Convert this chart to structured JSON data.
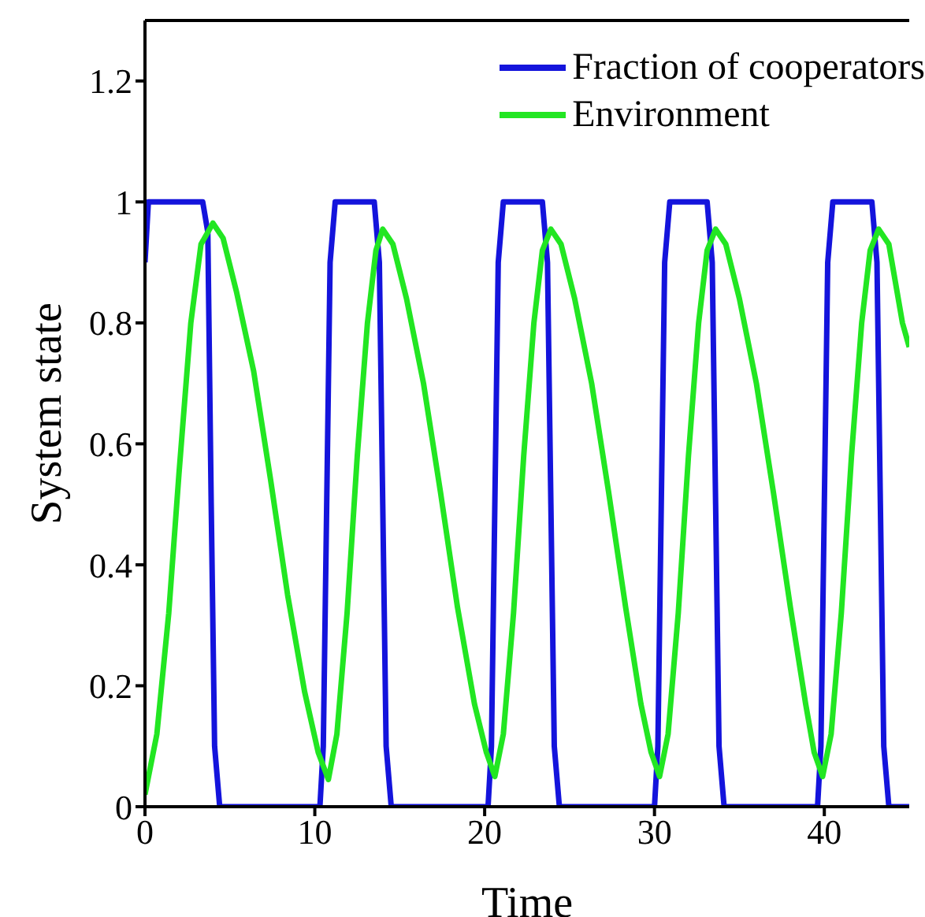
{
  "chart_data": {
    "type": "line",
    "xlabel": "Time",
    "ylabel": "System state",
    "xlim": [
      0,
      45
    ],
    "ylim": [
      0,
      1.3
    ],
    "xticks": [
      0,
      10,
      20,
      30,
      40
    ],
    "yticks": [
      0,
      0.2,
      0.4,
      0.6,
      0.8,
      1,
      1.2
    ],
    "grid": false,
    "legend": "top right",
    "marker": "none",
    "line_style": "solid",
    "series": [
      {
        "name": "Fraction of cooperators",
        "color": "#1414dc",
        "x": [
          0,
          0.2,
          3.4,
          3.7,
          3.9,
          4.1,
          4.4,
          10.3,
          10.5,
          10.7,
          10.9,
          11.2,
          13.5,
          13.8,
          14.0,
          14.2,
          14.5,
          20.2,
          20.4,
          20.6,
          20.8,
          21.1,
          23.4,
          23.7,
          23.9,
          24.1,
          24.4,
          30.0,
          30.2,
          30.4,
          30.6,
          30.9,
          33.1,
          33.4,
          33.6,
          33.8,
          34.1,
          39.6,
          39.8,
          40.0,
          40.2,
          40.5,
          42.8,
          43.1,
          43.3,
          43.5,
          43.8,
          45
        ],
        "values": [
          0.9,
          1,
          1,
          0.95,
          0.5,
          0.1,
          0,
          0,
          0.1,
          0.5,
          0.9,
          1,
          1,
          0.9,
          0.5,
          0.1,
          0,
          0,
          0.1,
          0.5,
          0.9,
          1,
          1,
          0.9,
          0.5,
          0.1,
          0,
          0,
          0.1,
          0.5,
          0.9,
          1,
          1,
          0.9,
          0.5,
          0.1,
          0,
          0,
          0.1,
          0.5,
          0.9,
          1,
          1,
          0.9,
          0.5,
          0.1,
          0,
          0
        ]
      },
      {
        "name": "Environment",
        "color": "#22e622",
        "x": [
          0,
          0.7,
          1.4,
          2.0,
          2.7,
          3.3,
          4.0,
          4.6,
          5.4,
          6.4,
          7.4,
          8.4,
          9.4,
          10.2,
          10.8,
          11.3,
          11.9,
          12.5,
          13.1,
          13.6,
          14.0,
          14.6,
          15.4,
          16.4,
          17.4,
          18.4,
          19.4,
          20.1,
          20.6,
          21.1,
          21.7,
          22.3,
          22.9,
          23.4,
          23.9,
          24.5,
          25.3,
          26.3,
          27.3,
          28.3,
          29.2,
          29.8,
          30.3,
          30.8,
          31.4,
          32.0,
          32.6,
          33.1,
          33.6,
          34.2,
          35.0,
          36.0,
          37.0,
          38.0,
          38.9,
          39.4,
          39.9,
          40.4,
          41.0,
          41.6,
          42.2,
          42.7,
          43.2,
          43.8,
          44.6,
          45
        ],
        "values": [
          0.02,
          0.12,
          0.32,
          0.55,
          0.8,
          0.93,
          0.965,
          0.94,
          0.85,
          0.72,
          0.54,
          0.35,
          0.19,
          0.09,
          0.045,
          0.12,
          0.32,
          0.58,
          0.8,
          0.92,
          0.955,
          0.93,
          0.84,
          0.7,
          0.52,
          0.33,
          0.17,
          0.09,
          0.05,
          0.12,
          0.32,
          0.58,
          0.8,
          0.92,
          0.955,
          0.93,
          0.84,
          0.7,
          0.52,
          0.33,
          0.17,
          0.09,
          0.05,
          0.12,
          0.32,
          0.58,
          0.8,
          0.92,
          0.955,
          0.93,
          0.84,
          0.7,
          0.52,
          0.33,
          0.17,
          0.09,
          0.05,
          0.12,
          0.32,
          0.58,
          0.8,
          0.92,
          0.955,
          0.93,
          0.8,
          0.76
        ]
      }
    ]
  }
}
